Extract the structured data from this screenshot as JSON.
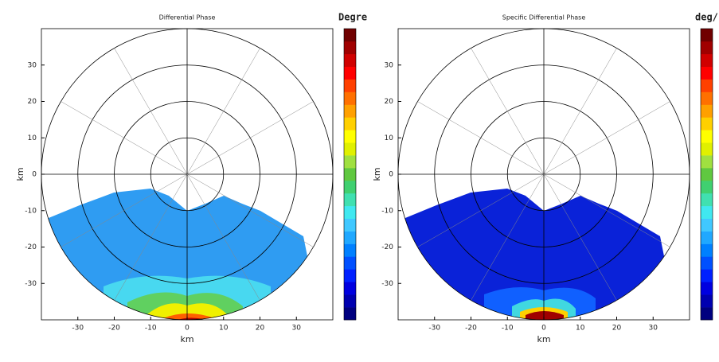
{
  "chart_data": [
    {
      "type": "ppi",
      "title": "Differential Phase",
      "xlabel": "km",
      "ylabel": "km",
      "colorbar_label": "Degre",
      "xlim": [
        -40,
        40
      ],
      "ylim": [
        -40,
        40
      ],
      "xticks": [
        -30,
        -20,
        -10,
        0,
        10,
        20,
        30
      ],
      "yticks": [
        -30,
        -20,
        -10,
        0,
        10,
        20,
        30
      ],
      "range_rings": [
        10,
        20,
        30,
        40
      ],
      "radial_step_deg": 30,
      "colorbar": [
        "#00007f",
        "#0000b0",
        "#0000e0",
        "#0020ff",
        "#0050ff",
        "#0080ff",
        "#20a8ff",
        "#40c8ff",
        "#40e8f0",
        "#40e0b0",
        "#40d070",
        "#60c840",
        "#a0e040",
        "#e0f000",
        "#ffff00",
        "#ffd000",
        "#ffa000",
        "#ff7000",
        "#ff4000",
        "#ff0000",
        "#d00000",
        "#a00000",
        "#700000"
      ]
    },
    {
      "type": "ppi",
      "title": "Specific Differential Phase",
      "xlabel": "km",
      "ylabel": "km",
      "colorbar_label": "deg/",
      "xlim": [
        -40,
        40
      ],
      "ylim": [
        -40,
        40
      ],
      "xticks": [
        -30,
        -20,
        -10,
        0,
        10,
        20,
        30
      ],
      "yticks": [
        -30,
        -20,
        -10,
        0,
        10,
        20,
        30
      ],
      "range_rings": [
        10,
        20,
        30,
        40
      ],
      "radial_step_deg": 30,
      "colorbar": [
        "#00007f",
        "#0000b0",
        "#0000e0",
        "#0020ff",
        "#0050ff",
        "#0080ff",
        "#20a8ff",
        "#40c8ff",
        "#40e8f0",
        "#40e0b0",
        "#40d070",
        "#60c840",
        "#a0e040",
        "#e0f000",
        "#ffff00",
        "#ffd000",
        "#ffa000",
        "#ff7000",
        "#ff4000",
        "#ff0000",
        "#d00000",
        "#a00000",
        "#700000"
      ]
    }
  ]
}
